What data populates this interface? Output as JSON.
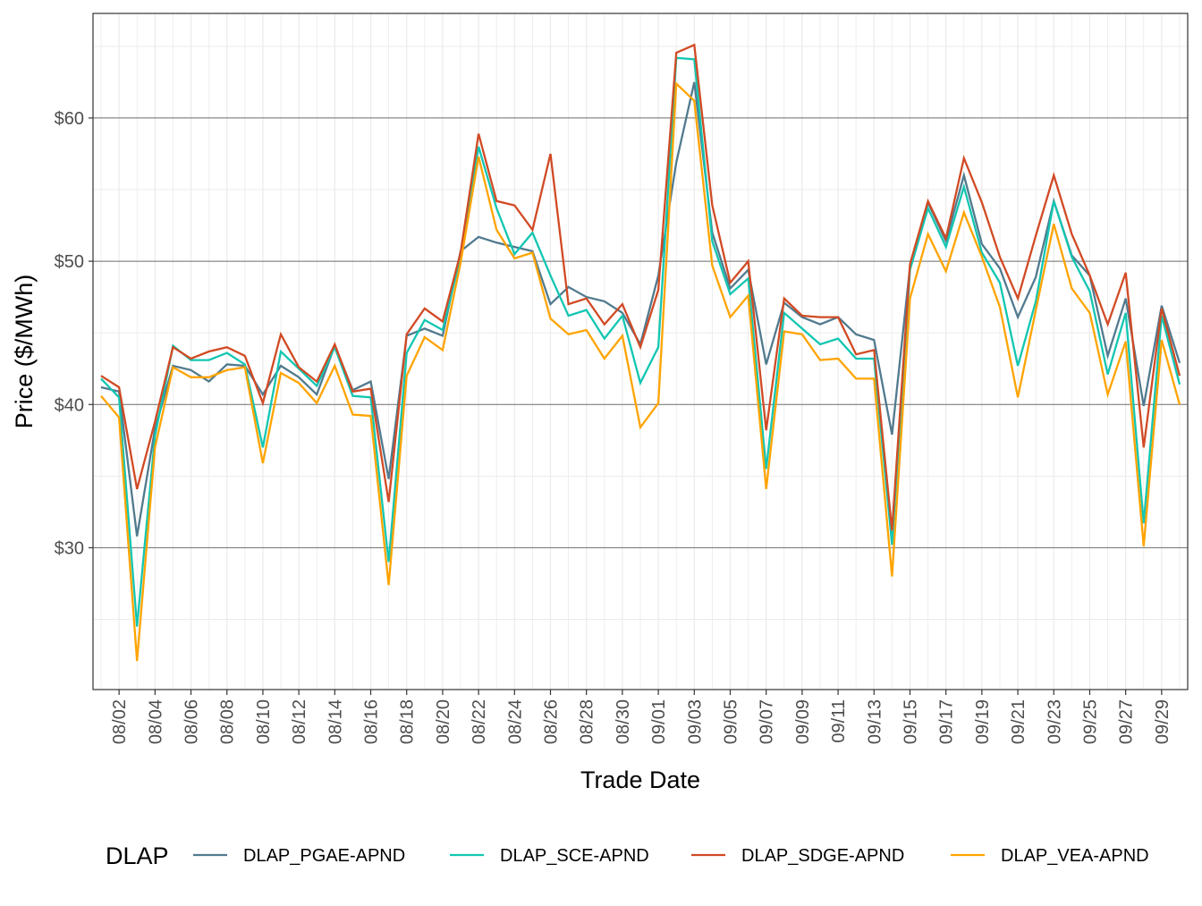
{
  "chart_data": {
    "type": "line",
    "title": "",
    "xlabel": "Trade Date",
    "ylabel": "Price ($/MWh)",
    "x": [
      "08/01",
      "08/02",
      "08/03",
      "08/04",
      "08/05",
      "08/06",
      "08/07",
      "08/08",
      "08/09",
      "08/10",
      "08/11",
      "08/12",
      "08/13",
      "08/14",
      "08/15",
      "08/16",
      "08/17",
      "08/18",
      "08/19",
      "08/20",
      "08/21",
      "08/22",
      "08/23",
      "08/24",
      "08/25",
      "08/26",
      "08/27",
      "08/28",
      "08/29",
      "08/30",
      "08/31",
      "09/01",
      "09/02",
      "09/03",
      "09/04",
      "09/05",
      "09/06",
      "09/07",
      "09/08",
      "09/09",
      "09/10",
      "09/11",
      "09/12",
      "09/13",
      "09/14",
      "09/15",
      "09/16",
      "09/17",
      "09/18",
      "09/19",
      "09/20",
      "09/21",
      "09/22",
      "09/23",
      "09/24",
      "09/25",
      "09/26",
      "09/27",
      "09/28",
      "09/29",
      "09/30"
    ],
    "x_tick_labels": [
      "08/02",
      "08/04",
      "08/06",
      "08/08",
      "08/10",
      "08/12",
      "08/14",
      "08/16",
      "08/18",
      "08/20",
      "08/22",
      "08/24",
      "08/26",
      "08/28",
      "08/30",
      "09/01",
      "09/03",
      "09/05",
      "09/07",
      "09/09",
      "09/11",
      "09/13",
      "09/15",
      "09/17",
      "09/19",
      "09/21",
      "09/23",
      "09/25",
      "09/27",
      "09/29"
    ],
    "y_ticks": [
      30,
      40,
      50,
      60
    ],
    "y_tick_labels": [
      "$30",
      "$40",
      "$50",
      "$60"
    ],
    "ylim": [
      20.1,
      67.3
    ],
    "grid": true,
    "legend": {
      "title": "DLAP",
      "position": "bottom"
    },
    "series": [
      {
        "name": "DLAP_PGAE-APND",
        "color": "#517a8e",
        "values": [
          41.2,
          40.9,
          30.8,
          38.3,
          42.7,
          42.4,
          41.6,
          42.8,
          42.7,
          40.7,
          42.7,
          41.9,
          40.7,
          44.1,
          41.0,
          41.6,
          34.8,
          44.8,
          45.3,
          44.8,
          50.7,
          51.7,
          51.3,
          51.0,
          50.7,
          47.0,
          48.2,
          47.5,
          47.2,
          46.4,
          44.2,
          49.0,
          56.9,
          62.5,
          52.0,
          48.1,
          49.4,
          42.8,
          47.1,
          46.1,
          45.6,
          46.1,
          44.9,
          44.5,
          37.9,
          49.6,
          54.1,
          51.4,
          56.0,
          51.2,
          49.5,
          46.1,
          48.9,
          54.2,
          50.4,
          49.0,
          43.4,
          47.4,
          39.9,
          46.9,
          42.9
        ]
      },
      {
        "name": "DLAP_SCE-APND",
        "color": "#12c6b1",
        "values": [
          41.8,
          40.5,
          24.5,
          37.8,
          44.1,
          43.1,
          43.1,
          43.6,
          42.8,
          37.0,
          43.7,
          42.5,
          41.3,
          44.0,
          40.6,
          40.5,
          29.0,
          43.6,
          45.9,
          45.2,
          50.3,
          58.0,
          53.7,
          50.5,
          52.0,
          49.0,
          46.2,
          46.6,
          44.6,
          46.2,
          41.5,
          44.0,
          64.2,
          64.1,
          51.4,
          47.7,
          48.8,
          35.5,
          46.4,
          45.3,
          44.2,
          44.6,
          43.2,
          43.2,
          30.2,
          49.4,
          53.7,
          51.0,
          55.2,
          50.6,
          48.5,
          42.7,
          47.2,
          54.2,
          50.3,
          47.9,
          42.1,
          46.4,
          31.7,
          46.2,
          41.4
        ]
      },
      {
        "name": "DLAP_SDGE-APND",
        "color": "#d14a24",
        "values": [
          42.0,
          41.2,
          34.1,
          38.8,
          44.0,
          43.2,
          43.7,
          44.0,
          43.4,
          40.1,
          44.9,
          42.6,
          41.6,
          44.2,
          40.9,
          41.1,
          33.2,
          44.9,
          46.7,
          45.8,
          50.6,
          58.9,
          54.2,
          53.9,
          52.2,
          57.5,
          47.0,
          47.4,
          45.6,
          47.0,
          44.0,
          48.0,
          64.55,
          65.1,
          53.9,
          48.5,
          50.0,
          38.2,
          47.4,
          46.2,
          46.1,
          46.1,
          43.5,
          43.8,
          31.2,
          49.8,
          54.2,
          51.6,
          57.2,
          54.1,
          50.3,
          47.4,
          51.8,
          56.0,
          51.9,
          49.0,
          45.6,
          49.2,
          37.0,
          46.7,
          42.0
        ]
      },
      {
        "name": "DLAP_VEA-APND",
        "color": "#ffa400",
        "values": [
          40.6,
          39.1,
          22.1,
          37.0,
          42.6,
          41.9,
          41.9,
          42.4,
          42.6,
          35.9,
          42.2,
          41.5,
          40.1,
          42.7,
          39.3,
          39.2,
          27.4,
          42.0,
          44.7,
          43.8,
          49.9,
          57.3,
          52.2,
          50.2,
          50.6,
          46.0,
          44.9,
          45.2,
          43.2,
          44.8,
          38.4,
          40.1,
          62.4,
          61.2,
          49.7,
          46.1,
          47.6,
          34.1,
          45.1,
          44.9,
          43.1,
          43.2,
          41.8,
          41.8,
          28.0,
          47.4,
          51.9,
          49.3,
          53.4,
          50.3,
          46.8,
          40.5,
          46.6,
          52.6,
          48.1,
          46.4,
          40.7,
          44.4,
          30.1,
          44.5,
          40.0
        ]
      }
    ]
  }
}
